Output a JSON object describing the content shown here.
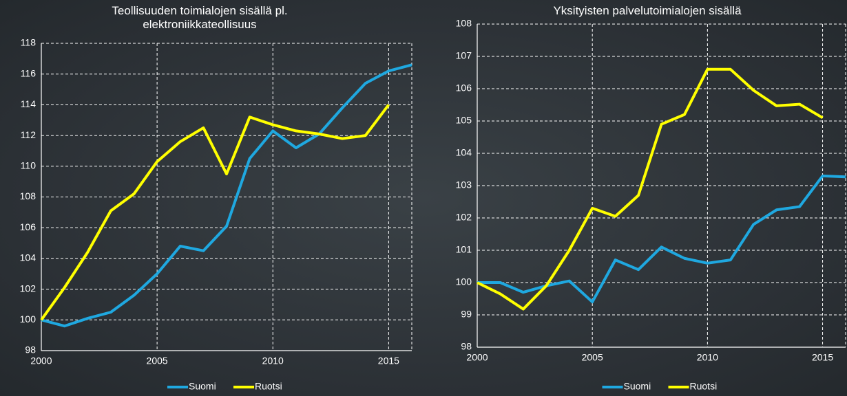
{
  "chart_data": [
    {
      "type": "line",
      "title": "Teollisuuden toimialojen sisällä pl. elektroniikkateollisuus",
      "x": [
        2000,
        2001,
        2002,
        2003,
        2004,
        2005,
        2006,
        2007,
        2008,
        2009,
        2010,
        2011,
        2012,
        2013,
        2014,
        2015,
        2016
      ],
      "xlim": [
        2000,
        2016
      ],
      "xticks": [
        2000,
        2005,
        2010,
        2015
      ],
      "ylim": [
        98,
        118
      ],
      "yticks": [
        98,
        100,
        102,
        104,
        106,
        108,
        110,
        112,
        114,
        116,
        118
      ],
      "grid": true,
      "legend": "bottom",
      "series": [
        {
          "name": "Suomi",
          "color": "#1fa8e0",
          "values": [
            100,
            99.6,
            100.1,
            100.5,
            101.6,
            103,
            104.8,
            104.5,
            106.1,
            110.5,
            112.3,
            111.2,
            112.1,
            113.8,
            115.4,
            116.2,
            116.6
          ]
        },
        {
          "name": "Ruotsi",
          "color": "#ffff00",
          "values": [
            100,
            102.1,
            104.4,
            107.1,
            108.2,
            110.3,
            111.6,
            112.5,
            109.5,
            113.2,
            112.7,
            112.3,
            112.1,
            111.8,
            112.0,
            114.0,
            null
          ]
        }
      ]
    },
    {
      "type": "line",
      "title": "Yksityisten palvelutoimialojen sisällä",
      "x": [
        2000,
        2001,
        2002,
        2003,
        2004,
        2005,
        2006,
        2007,
        2008,
        2009,
        2010,
        2011,
        2012,
        2013,
        2014,
        2015,
        2016
      ],
      "xlim": [
        2000,
        2016
      ],
      "xticks": [
        2000,
        2005,
        2010,
        2015
      ],
      "ylim": [
        98,
        108
      ],
      "yticks": [
        98,
        99,
        100,
        101,
        102,
        103,
        104,
        105,
        106,
        107,
        108
      ],
      "grid": true,
      "legend": "bottom",
      "series": [
        {
          "name": "Suomi",
          "color": "#1fa8e0",
          "values": [
            100,
            100,
            99.7,
            99.9,
            100.05,
            99.4,
            100.7,
            100.4,
            101.1,
            100.75,
            100.6,
            100.7,
            101.8,
            102.25,
            102.35,
            103.3,
            103.27
          ]
        },
        {
          "name": "Ruotsi",
          "color": "#ffff00",
          "values": [
            100,
            99.65,
            99.18,
            99.9,
            101.0,
            102.3,
            102.05,
            102.7,
            104.9,
            105.2,
            106.6,
            106.6,
            105.95,
            105.47,
            105.52,
            105.1,
            null
          ]
        }
      ]
    }
  ]
}
